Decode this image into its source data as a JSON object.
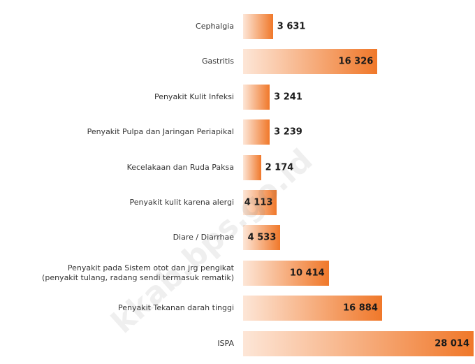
{
  "chart_data": {
    "type": "bar",
    "orientation": "horizontal",
    "categories": [
      "Cephalgia",
      "Gastritis",
      "Penyakit Kulit Infeksi",
      "Penyakit Pulpa dan Jaringan Periapikal",
      "Kecelakaan dan Ruda Paksa",
      "Penyakit kulit karena alergi",
      "Diare / Diarrhae",
      "Penyakit pada Sistem otot dan jrg pengikat\n(penyakit tulang, radang sendi termasuk rematik)",
      "Penyakit Tekanan darah tinggi",
      "ISPA"
    ],
    "values": [
      3631,
      16326,
      3241,
      3239,
      2174,
      4113,
      4533,
      10414,
      16884,
      28014
    ],
    "value_labels": [
      "3 631",
      "16 326",
      "3 241",
      "3 239",
      "2 174",
      "4 113",
      "4 533",
      "10 414",
      "16 884",
      "28 014"
    ],
    "color": "#f0782a",
    "watermark": "kkab.bps.go.id"
  }
}
